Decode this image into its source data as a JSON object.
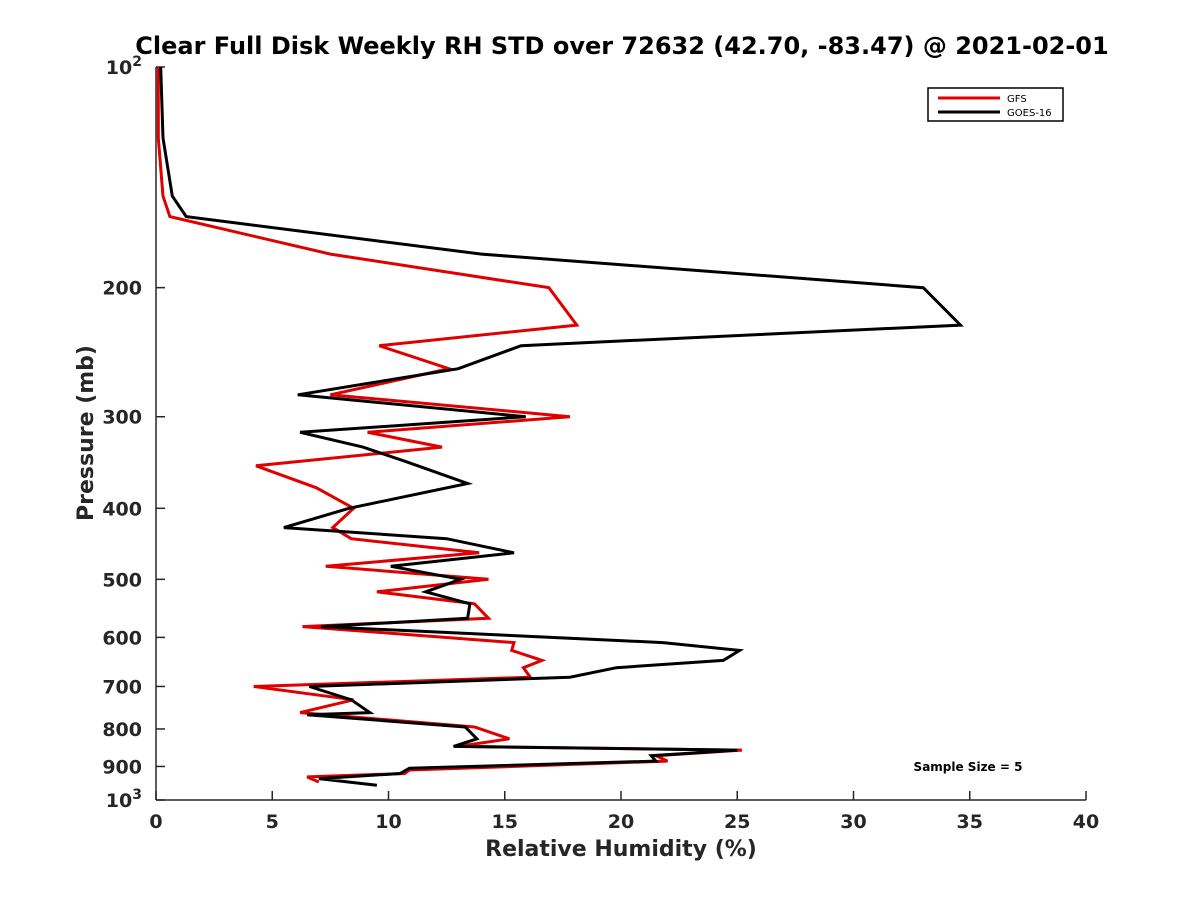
{
  "chart_data": {
    "type": "line",
    "title": "Clear Full Disk Weekly RH STD over 72632 (42.70, -83.47) @ 2021-02-01",
    "xlabel": "Relative Humidity (%)",
    "ylabel": "Pressure (mb)",
    "xlim": [
      0,
      40
    ],
    "ylim": [
      100,
      1000
    ],
    "yscale": "log",
    "y_reversed": true,
    "grid": false,
    "legend_position": "top-right",
    "x_ticks": [
      "0",
      "5",
      "10",
      "15",
      "20",
      "25",
      "30",
      "35",
      "40"
    ],
    "y_ticks": [
      {
        "value": 100,
        "label": "10",
        "sup": "2"
      },
      {
        "value": 200,
        "label": "200",
        "sup": ""
      },
      {
        "value": 300,
        "label": "300",
        "sup": ""
      },
      {
        "value": 400,
        "label": "400",
        "sup": ""
      },
      {
        "value": 500,
        "label": "500",
        "sup": ""
      },
      {
        "value": 600,
        "label": "600",
        "sup": ""
      },
      {
        "value": 700,
        "label": "700",
        "sup": ""
      },
      {
        "value": 800,
        "label": "800",
        "sup": ""
      },
      {
        "value": 900,
        "label": "900",
        "sup": ""
      },
      {
        "value": 1000,
        "label": "10",
        "sup": "3"
      }
    ],
    "annotation": "Sample Size = 5",
    "series": [
      {
        "name": "GFS",
        "color": "#e00000",
        "points": [
          [
            0.1,
            100
          ],
          [
            0.1,
            125
          ],
          [
            0.3,
            150
          ],
          [
            0.6,
            160
          ],
          [
            7.5,
            180
          ],
          [
            16.9,
            200
          ],
          [
            18.1,
            225
          ],
          [
            9.6,
            240
          ],
          [
            12.6,
            258
          ],
          [
            7.5,
            280
          ],
          [
            17.8,
            300
          ],
          [
            9.1,
            315
          ],
          [
            12.3,
            330
          ],
          [
            4.3,
            350
          ],
          [
            6.9,
            375
          ],
          [
            8.5,
            400
          ],
          [
            7.6,
            425
          ],
          [
            8.4,
            440
          ],
          [
            13.9,
            460
          ],
          [
            7.3,
            480
          ],
          [
            14.3,
            500
          ],
          [
            9.5,
            520
          ],
          [
            13.7,
            540
          ],
          [
            14.3,
            565
          ],
          [
            6.3,
            580
          ],
          [
            15.4,
            610
          ],
          [
            15.3,
            625
          ],
          [
            16.6,
            645
          ],
          [
            15.8,
            660
          ],
          [
            16.1,
            680
          ],
          [
            4.2,
            700
          ],
          [
            8.5,
            730
          ],
          [
            6.2,
            760
          ],
          [
            13.7,
            795
          ],
          [
            15.2,
            825
          ],
          [
            13.0,
            845
          ],
          [
            25.2,
            855
          ],
          [
            21.5,
            870
          ],
          [
            22.0,
            885
          ],
          [
            10.9,
            910
          ],
          [
            10.7,
            920
          ],
          [
            6.5,
            930
          ],
          [
            7.0,
            945
          ]
        ]
      },
      {
        "name": "GOES-16",
        "color": "#000000",
        "points": [
          [
            0.2,
            100
          ],
          [
            0.3,
            125
          ],
          [
            0.7,
            150
          ],
          [
            1.3,
            160
          ],
          [
            14.0,
            180
          ],
          [
            33.0,
            200
          ],
          [
            34.6,
            225
          ],
          [
            15.7,
            240
          ],
          [
            13.0,
            258
          ],
          [
            6.1,
            280
          ],
          [
            15.9,
            300
          ],
          [
            6.2,
            315
          ],
          [
            8.9,
            330
          ],
          [
            10.7,
            345
          ],
          [
            13.4,
            370
          ],
          [
            8.3,
            400
          ],
          [
            5.5,
            425
          ],
          [
            12.5,
            440
          ],
          [
            15.4,
            460
          ],
          [
            10.1,
            480
          ],
          [
            13.1,
            500
          ],
          [
            11.6,
            520
          ],
          [
            13.5,
            540
          ],
          [
            13.4,
            565
          ],
          [
            7.1,
            580
          ],
          [
            21.8,
            610
          ],
          [
            25.1,
            625
          ],
          [
            24.4,
            645
          ],
          [
            19.8,
            660
          ],
          [
            17.8,
            680
          ],
          [
            6.6,
            700
          ],
          [
            8.4,
            730
          ],
          [
            9.2,
            760
          ],
          [
            6.5,
            765
          ],
          [
            13.3,
            795
          ],
          [
            13.8,
            825
          ],
          [
            12.8,
            845
          ],
          [
            25.0,
            855
          ],
          [
            21.3,
            870
          ],
          [
            21.5,
            885
          ],
          [
            10.9,
            905
          ],
          [
            10.5,
            920
          ],
          [
            7.0,
            935
          ],
          [
            9.5,
            955
          ]
        ]
      }
    ]
  }
}
